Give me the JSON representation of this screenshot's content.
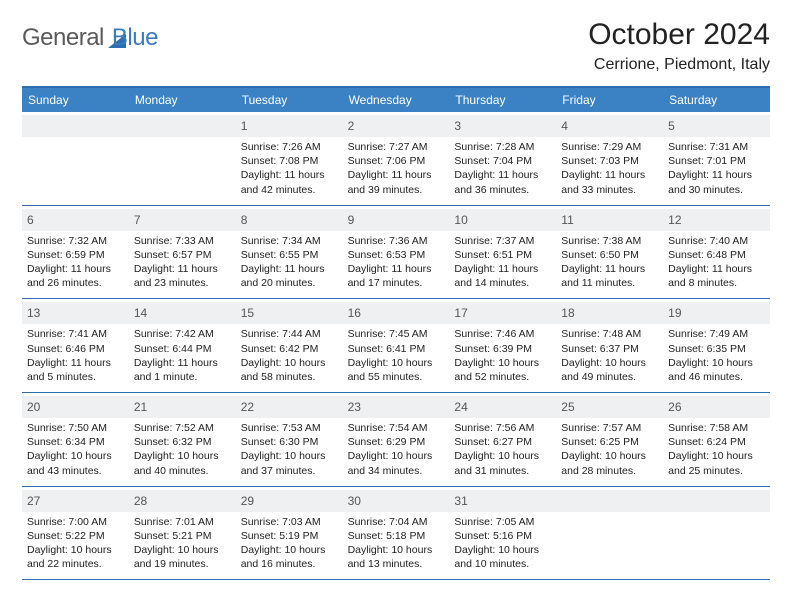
{
  "logo": {
    "part1": "General",
    "part2": "Blue"
  },
  "title": "October 2024",
  "location": "Cerrione, Piedmont, Italy",
  "colors": {
    "header_bg": "#3a82c4",
    "border": "#2e6db3",
    "daybar": "#eef0f2",
    "logo_gray": "#5a5a5a",
    "logo_blue": "#3a7bbf"
  },
  "dayNames": [
    "Sunday",
    "Monday",
    "Tuesday",
    "Wednesday",
    "Thursday",
    "Friday",
    "Saturday"
  ],
  "weeks": [
    [
      {
        "n": "",
        "empty": true
      },
      {
        "n": "",
        "empty": true
      },
      {
        "n": "1",
        "sr": "7:26 AM",
        "ss": "7:08 PM",
        "dl": "11 hours and 42 minutes."
      },
      {
        "n": "2",
        "sr": "7:27 AM",
        "ss": "7:06 PM",
        "dl": "11 hours and 39 minutes."
      },
      {
        "n": "3",
        "sr": "7:28 AM",
        "ss": "7:04 PM",
        "dl": "11 hours and 36 minutes."
      },
      {
        "n": "4",
        "sr": "7:29 AM",
        "ss": "7:03 PM",
        "dl": "11 hours and 33 minutes."
      },
      {
        "n": "5",
        "sr": "7:31 AM",
        "ss": "7:01 PM",
        "dl": "11 hours and 30 minutes."
      }
    ],
    [
      {
        "n": "6",
        "sr": "7:32 AM",
        "ss": "6:59 PM",
        "dl": "11 hours and 26 minutes."
      },
      {
        "n": "7",
        "sr": "7:33 AM",
        "ss": "6:57 PM",
        "dl": "11 hours and 23 minutes."
      },
      {
        "n": "8",
        "sr": "7:34 AM",
        "ss": "6:55 PM",
        "dl": "11 hours and 20 minutes."
      },
      {
        "n": "9",
        "sr": "7:36 AM",
        "ss": "6:53 PM",
        "dl": "11 hours and 17 minutes."
      },
      {
        "n": "10",
        "sr": "7:37 AM",
        "ss": "6:51 PM",
        "dl": "11 hours and 14 minutes."
      },
      {
        "n": "11",
        "sr": "7:38 AM",
        "ss": "6:50 PM",
        "dl": "11 hours and 11 minutes."
      },
      {
        "n": "12",
        "sr": "7:40 AM",
        "ss": "6:48 PM",
        "dl": "11 hours and 8 minutes."
      }
    ],
    [
      {
        "n": "13",
        "sr": "7:41 AM",
        "ss": "6:46 PM",
        "dl": "11 hours and 5 minutes."
      },
      {
        "n": "14",
        "sr": "7:42 AM",
        "ss": "6:44 PM",
        "dl": "11 hours and 1 minute."
      },
      {
        "n": "15",
        "sr": "7:44 AM",
        "ss": "6:42 PM",
        "dl": "10 hours and 58 minutes."
      },
      {
        "n": "16",
        "sr": "7:45 AM",
        "ss": "6:41 PM",
        "dl": "10 hours and 55 minutes."
      },
      {
        "n": "17",
        "sr": "7:46 AM",
        "ss": "6:39 PM",
        "dl": "10 hours and 52 minutes."
      },
      {
        "n": "18",
        "sr": "7:48 AM",
        "ss": "6:37 PM",
        "dl": "10 hours and 49 minutes."
      },
      {
        "n": "19",
        "sr": "7:49 AM",
        "ss": "6:35 PM",
        "dl": "10 hours and 46 minutes."
      }
    ],
    [
      {
        "n": "20",
        "sr": "7:50 AM",
        "ss": "6:34 PM",
        "dl": "10 hours and 43 minutes."
      },
      {
        "n": "21",
        "sr": "7:52 AM",
        "ss": "6:32 PM",
        "dl": "10 hours and 40 minutes."
      },
      {
        "n": "22",
        "sr": "7:53 AM",
        "ss": "6:30 PM",
        "dl": "10 hours and 37 minutes."
      },
      {
        "n": "23",
        "sr": "7:54 AM",
        "ss": "6:29 PM",
        "dl": "10 hours and 34 minutes."
      },
      {
        "n": "24",
        "sr": "7:56 AM",
        "ss": "6:27 PM",
        "dl": "10 hours and 31 minutes."
      },
      {
        "n": "25",
        "sr": "7:57 AM",
        "ss": "6:25 PM",
        "dl": "10 hours and 28 minutes."
      },
      {
        "n": "26",
        "sr": "7:58 AM",
        "ss": "6:24 PM",
        "dl": "10 hours and 25 minutes."
      }
    ],
    [
      {
        "n": "27",
        "sr": "7:00 AM",
        "ss": "5:22 PM",
        "dl": "10 hours and 22 minutes."
      },
      {
        "n": "28",
        "sr": "7:01 AM",
        "ss": "5:21 PM",
        "dl": "10 hours and 19 minutes."
      },
      {
        "n": "29",
        "sr": "7:03 AM",
        "ss": "5:19 PM",
        "dl": "10 hours and 16 minutes."
      },
      {
        "n": "30",
        "sr": "7:04 AM",
        "ss": "5:18 PM",
        "dl": "10 hours and 13 minutes."
      },
      {
        "n": "31",
        "sr": "7:05 AM",
        "ss": "5:16 PM",
        "dl": "10 hours and 10 minutes."
      },
      {
        "n": "",
        "empty": true
      },
      {
        "n": "",
        "empty": true
      }
    ]
  ],
  "labels": {
    "sunrise": "Sunrise:",
    "sunset": "Sunset:",
    "daylight": "Daylight:"
  }
}
